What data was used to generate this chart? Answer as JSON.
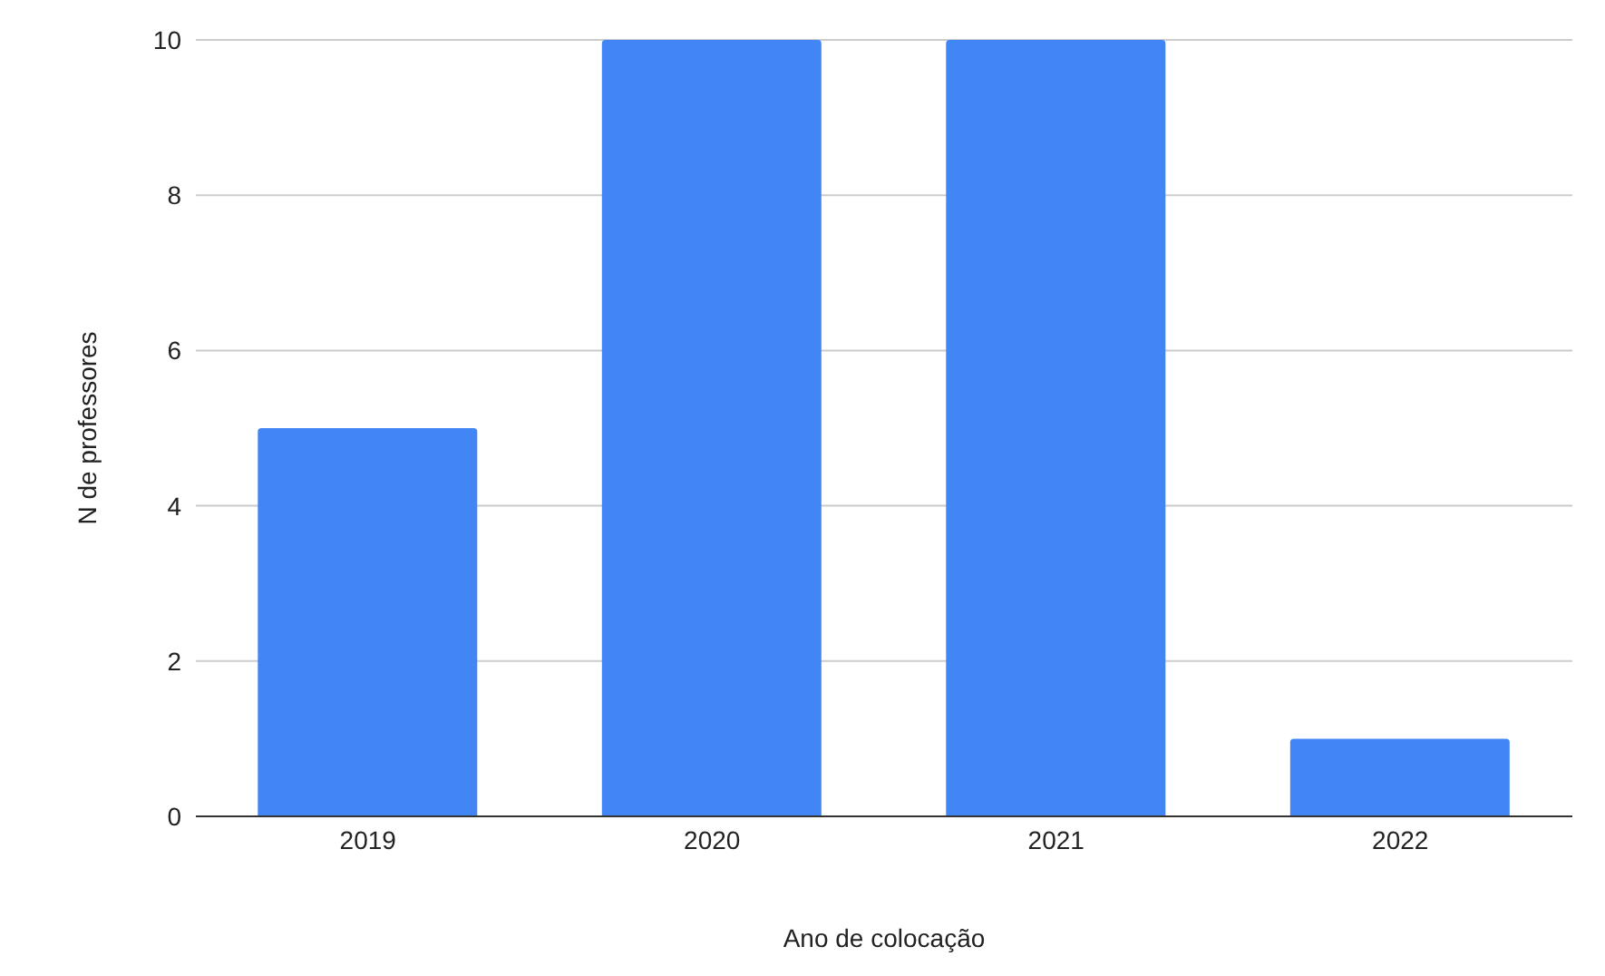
{
  "chart_data": {
    "type": "bar",
    "xlabel": "Ano de colocação",
    "ylabel": "N de professores",
    "categories": [
      "2019",
      "2020",
      "2021",
      "2022"
    ],
    "values": [
      5,
      10,
      10,
      1
    ],
    "color": "#4285f4",
    "ylim": [
      0,
      10
    ],
    "yticks": [
      0,
      2,
      4,
      6,
      8,
      10
    ],
    "grid": "y"
  }
}
